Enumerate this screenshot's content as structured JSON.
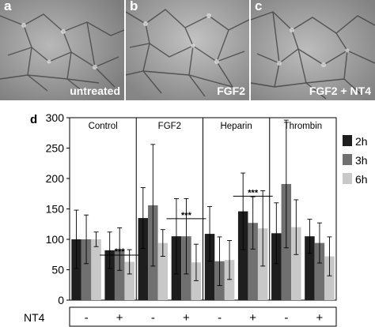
{
  "panels": [
    {
      "letter": "a",
      "caption": "untreated"
    },
    {
      "letter": "b",
      "caption": "FGF2"
    },
    {
      "letter": "c",
      "caption": "FGF2 + NT4"
    }
  ],
  "chart_data": {
    "type": "bar",
    "panel_letter": "d",
    "title": "",
    "xlabel": "",
    "ylabel": "",
    "ylim": [
      0,
      300
    ],
    "yticks": [
      0,
      50,
      100,
      150,
      200,
      250,
      300
    ],
    "grid": false,
    "legend_position": "right",
    "groups": [
      "Control",
      "FGF2",
      "Heparin",
      "Thrombin"
    ],
    "nt4_row_label": "NT4",
    "nt4_states": [
      "-",
      "+"
    ],
    "colors": {
      "2h": "#1e1e1e",
      "3h": "#707070",
      "6h": "#c8c8c8"
    },
    "series": [
      {
        "name": "2h",
        "values": [
          100,
          82,
          135,
          105,
          109,
          146,
          110,
          105
        ],
        "errors": [
          48,
          30,
          50,
          62,
          45,
          63,
          50,
          28
        ]
      },
      {
        "name": "3h",
        "values": [
          100,
          84,
          156,
          105,
          64,
          127,
          191,
          94
        ],
        "errors": [
          40,
          35,
          100,
          62,
          40,
          43,
          105,
          33
        ]
      },
      {
        "name": "6h",
        "values": [
          100,
          63,
          94,
          62,
          66,
          118,
          120,
          72
        ],
        "errors": [
          12,
          20,
          22,
          30,
          32,
          62,
          45,
          32
        ]
      }
    ],
    "significance": [
      {
        "group": "Control",
        "label": "***",
        "y": 74
      },
      {
        "group": "FGF2",
        "label": "***",
        "y": 134
      },
      {
        "group": "Heparin",
        "label": "***",
        "y": 171
      }
    ]
  }
}
